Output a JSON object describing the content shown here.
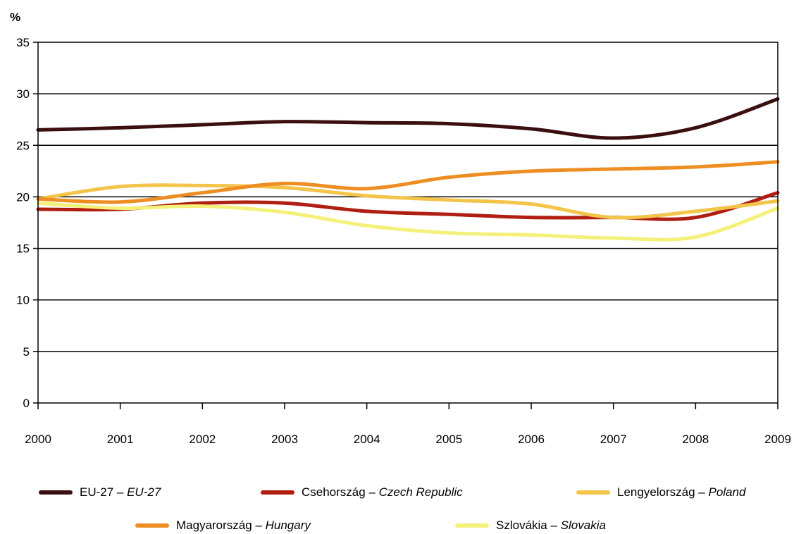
{
  "chart_data": {
    "type": "line",
    "unit_label": "%",
    "x": [
      "2000",
      "2001",
      "2002",
      "2003",
      "2004",
      "2005",
      "2006",
      "2007",
      "2008",
      "2009"
    ],
    "ylim": [
      0,
      35
    ],
    "yticks": [
      0,
      5,
      10,
      15,
      20,
      25,
      30,
      35
    ],
    "grid": true,
    "legend_position": "bottom",
    "series": [
      {
        "name": "EU-27",
        "name_en": "EU-27",
        "color": "#3b0f10",
        "values": [
          26.5,
          26.7,
          27.0,
          27.3,
          27.2,
          27.1,
          26.6,
          25.7,
          26.7,
          29.5
        ]
      },
      {
        "name": "Csehország",
        "name_en": "Czech Republic",
        "color": "#b01e12",
        "values": [
          18.8,
          18.8,
          19.4,
          19.4,
          18.6,
          18.3,
          18.0,
          18.0,
          18.0,
          20.4
        ]
      },
      {
        "name": "Lengyelország",
        "name_en": "Poland",
        "color": "#f3c44a",
        "values": [
          19.8,
          21.0,
          21.1,
          20.9,
          20.1,
          19.7,
          19.3,
          18.0,
          18.6,
          19.6
        ]
      },
      {
        "name": "Magyarország",
        "name_en": "Hungary",
        "color": "#ee8e22",
        "values": [
          19.8,
          19.5,
          20.4,
          21.3,
          20.8,
          21.9,
          22.5,
          22.7,
          22.9,
          23.4
        ]
      },
      {
        "name": "Szlovákia",
        "name_en": "Slovakia",
        "color": "#f4f17a",
        "values": [
          19.4,
          18.9,
          19.1,
          18.5,
          17.2,
          16.5,
          16.3,
          16.0,
          16.1,
          18.9
        ]
      }
    ]
  }
}
